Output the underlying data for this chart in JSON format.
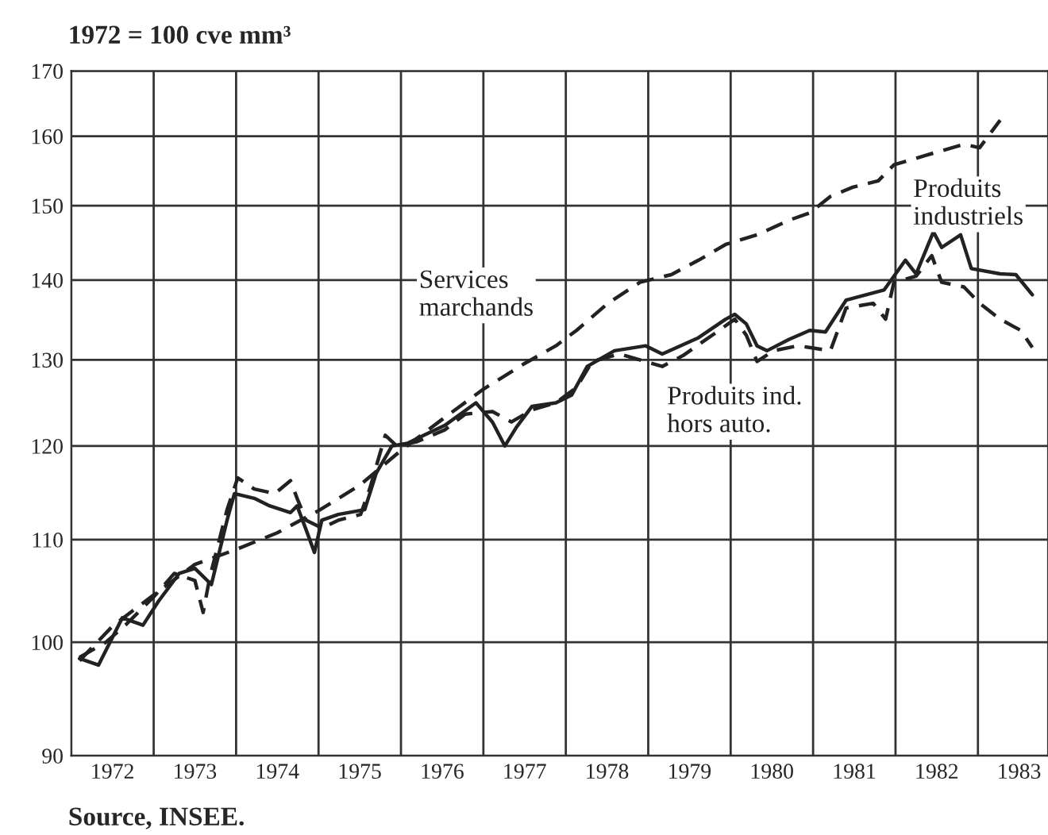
{
  "chart_data": {
    "type": "line",
    "ylabel": "1972 = 100 cve mm³",
    "log": "y",
    "grid": true,
    "xlim": [
      1972,
      1983.85
    ],
    "ylim": [
      90,
      170
    ],
    "yticks": [
      90,
      100,
      110,
      120,
      130,
      140,
      150,
      160,
      170
    ],
    "xticks": [
      {
        "value": 1972,
        "label": null
      },
      {
        "value": 1972.5,
        "label": "1972"
      },
      {
        "value": 1973,
        "label": null
      },
      {
        "value": 1973.5,
        "label": "1973"
      },
      {
        "value": 1974,
        "label": null
      },
      {
        "value": 1974.5,
        "label": "1974"
      },
      {
        "value": 1975,
        "label": null
      },
      {
        "value": 1975.5,
        "label": "1975"
      },
      {
        "value": 1976,
        "label": null
      },
      {
        "value": 1976.5,
        "label": "1976"
      },
      {
        "value": 1977,
        "label": null
      },
      {
        "value": 1977.5,
        "label": "1977"
      },
      {
        "value": 1978,
        "label": null
      },
      {
        "value": 1978.5,
        "label": "1978"
      },
      {
        "value": 1979,
        "label": null
      },
      {
        "value": 1979.5,
        "label": "1979"
      },
      {
        "value": 1980,
        "label": null
      },
      {
        "value": 1980.5,
        "label": "1980"
      },
      {
        "value": 1981,
        "label": null
      },
      {
        "value": 1981.5,
        "label": "1981"
      },
      {
        "value": 1982,
        "label": null
      },
      {
        "value": 1982.5,
        "label": "1982"
      },
      {
        "value": 1983,
        "label": null
      },
      {
        "value": 1983.5,
        "label": "1983"
      }
    ],
    "series": [
      {
        "name": "Produits\nindustriels",
        "color": "#222222",
        "line_style": "solid",
        "x": [
          1972.1,
          1972.33,
          1972.62,
          1972.87,
          1973.06,
          1973.31,
          1973.5,
          1973.7,
          1973.89,
          1973.98,
          1974.22,
          1974.41,
          1974.66,
          1974.74,
          1974.85,
          1974.95,
          1975.04,
          1975.24,
          1975.56,
          1975.7,
          1975.89,
          1976.08,
          1976.28,
          1976.53,
          1976.72,
          1976.91,
          1977.11,
          1977.26,
          1977.4,
          1977.59,
          1977.88,
          1978.07,
          1978.26,
          1978.59,
          1978.97,
          1979.17,
          1979.61,
          1979.94,
          1980.05,
          1980.19,
          1980.32,
          1980.44,
          1980.71,
          1980.96,
          1981.15,
          1981.4,
          1981.86,
          1982.12,
          1982.25,
          1982.46,
          1982.56,
          1982.79,
          1982.92,
          1983.27,
          1983.46,
          1983.66
        ],
        "values": [
          98.5,
          97.9,
          102.3,
          101.6,
          103.9,
          106.6,
          107.1,
          105.5,
          112,
          114.8,
          114.3,
          113.5,
          112.8,
          113.5,
          111,
          108.7,
          112,
          112.6,
          113.1,
          117,
          120,
          120.3,
          121.2,
          122.3,
          123.6,
          124.9,
          122.7,
          120,
          122.1,
          124.5,
          124.9,
          125.8,
          129.2,
          131.1,
          131.7,
          130.7,
          132.7,
          135,
          135.6,
          134.4,
          131.7,
          131.1,
          132.5,
          133.6,
          133.4,
          137.4,
          138.7,
          142.6,
          140.8,
          146.4,
          144.3,
          146,
          141.5,
          140.8,
          140.7,
          138.1
        ]
      },
      {
        "name": "Produits ind.\nhors auto.",
        "color": "#222222",
        "line_style": "dashed",
        "x": [
          1972.1,
          1972.42,
          1972.67,
          1973.0,
          1973.25,
          1973.5,
          1973.6,
          1973.68,
          1973.89,
          1974.02,
          1974.22,
          1974.47,
          1974.66,
          1974.74,
          1974.85,
          1975.04,
          1975.24,
          1975.51,
          1975.62,
          1975.81,
          1975.95,
          1976.2,
          1976.53,
          1976.78,
          1977.11,
          1977.34,
          1977.59,
          1977.88,
          1978.13,
          1978.32,
          1978.65,
          1979.17,
          1979.42,
          1979.86,
          1980.05,
          1980.19,
          1980.32,
          1980.52,
          1980.82,
          1981.21,
          1981.4,
          1981.73,
          1981.88,
          1981.98,
          1982.25,
          1982.44,
          1982.56,
          1982.83,
          1983.02,
          1983.27,
          1983.52,
          1983.66
        ],
        "values": [
          98.6,
          100,
          101.7,
          104.3,
          106.6,
          105.9,
          102.8,
          106.2,
          113.1,
          116.5,
          115.3,
          114.8,
          116.2,
          114.3,
          112,
          111.2,
          112,
          112.6,
          115.3,
          121.2,
          120,
          120.5,
          121.8,
          123.6,
          123.9,
          122.7,
          124.1,
          124.9,
          126.7,
          129.8,
          130.7,
          129.2,
          130.5,
          133.6,
          135,
          133,
          129.8,
          131.1,
          131.7,
          131.1,
          136.4,
          137,
          135,
          139.7,
          140.5,
          143.2,
          139.7,
          139.1,
          137,
          135,
          133.6,
          131.5
        ]
      },
      {
        "name": "Services\nmarchands",
        "color": "#222222",
        "line_style": "dashed",
        "x": [
          1972.1,
          1972.5,
          1973.0,
          1973.5,
          1974.0,
          1974.5,
          1975.0,
          1975.5,
          1976.0,
          1976.5,
          1977.0,
          1977.49,
          1977.88,
          1978.13,
          1978.51,
          1978.9,
          1979.28,
          1979.61,
          1979.94,
          1980.32,
          1980.71,
          1980.96,
          1981.21,
          1981.48,
          1981.79,
          1981.98,
          1982.37,
          1982.83,
          1983.02,
          1983.27
        ],
        "values": [
          98.3,
          101.5,
          104.5,
          107.5,
          109,
          110.7,
          113,
          115.7,
          119.5,
          123,
          126.5,
          129.5,
          131.7,
          133.6,
          137,
          139.7,
          140.7,
          142.6,
          144.7,
          146,
          148,
          149,
          151.3,
          152.6,
          153.5,
          155.8,
          157.2,
          158.8,
          158.3,
          162.4
        ]
      }
    ],
    "annotations": [
      "Source, INSEE."
    ]
  }
}
